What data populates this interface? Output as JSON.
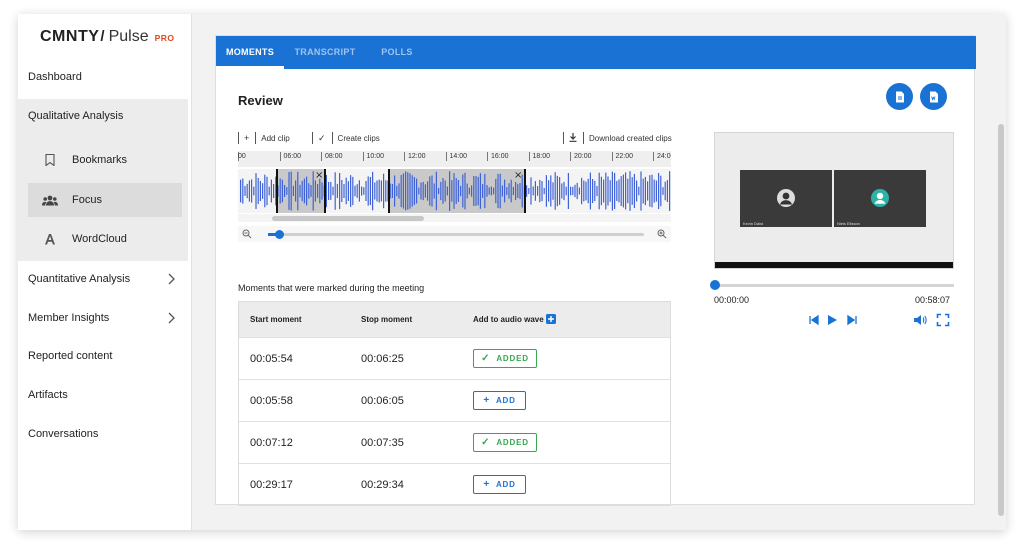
{
  "brand": {
    "name": "CMNTY",
    "product": "Pulse",
    "tier": "PRO"
  },
  "sidebar": {
    "items": [
      {
        "label": "Dashboard"
      },
      {
        "label": "Qualitative Analysis"
      },
      {
        "label": "Quantitative Analysis"
      },
      {
        "label": "Member Insights"
      },
      {
        "label": "Reported content"
      },
      {
        "label": "Artifacts"
      },
      {
        "label": "Conversations"
      }
    ],
    "subitems": [
      {
        "label": "Bookmarks",
        "icon": "bookmark-icon"
      },
      {
        "label": "Focus",
        "icon": "people-icon"
      },
      {
        "label": "WordCloud",
        "icon": "letter-a-icon"
      }
    ],
    "active_subitem": "Focus"
  },
  "tabs": [
    {
      "label": "MOMENTS",
      "active": true
    },
    {
      "label": "TRANSCRIPT",
      "active": false
    },
    {
      "label": "POLLS",
      "active": false
    }
  ],
  "review": {
    "title": "Review"
  },
  "toolbar": {
    "add_clip": "Add clip",
    "create_clips": "Create clips",
    "download_clips": "Download created clips"
  },
  "timeline": {
    "ticks": [
      ":00",
      "06:00",
      "08:00",
      "10:00",
      "12:00",
      "14:00",
      "16:00",
      "18:00",
      "20:00",
      "22:00",
      "24:00"
    ]
  },
  "moments": {
    "caption": "Moments that were marked during the meeting",
    "headers": {
      "start": "Start moment",
      "stop": "Stop moment",
      "add": "Add to audio wave"
    },
    "rows": [
      {
        "start": "00:05:54",
        "stop": "00:06:25",
        "status": "ADDED"
      },
      {
        "start": "00:05:58",
        "stop": "00:06:05",
        "status": "ADD"
      },
      {
        "start": "00:07:12",
        "stop": "00:07:35",
        "status": "ADDED"
      },
      {
        "start": "00:29:17",
        "stop": "00:29:34",
        "status": "ADD"
      }
    ]
  },
  "video": {
    "current_time": "00:00:00",
    "duration": "00:58:07",
    "progress": 0,
    "participants": [
      "Kevin Dalst",
      "Niels Ellsson"
    ]
  },
  "colors": {
    "accent": "#1a73d4",
    "added": "#36a852",
    "brand_pro": "#e2471f"
  }
}
